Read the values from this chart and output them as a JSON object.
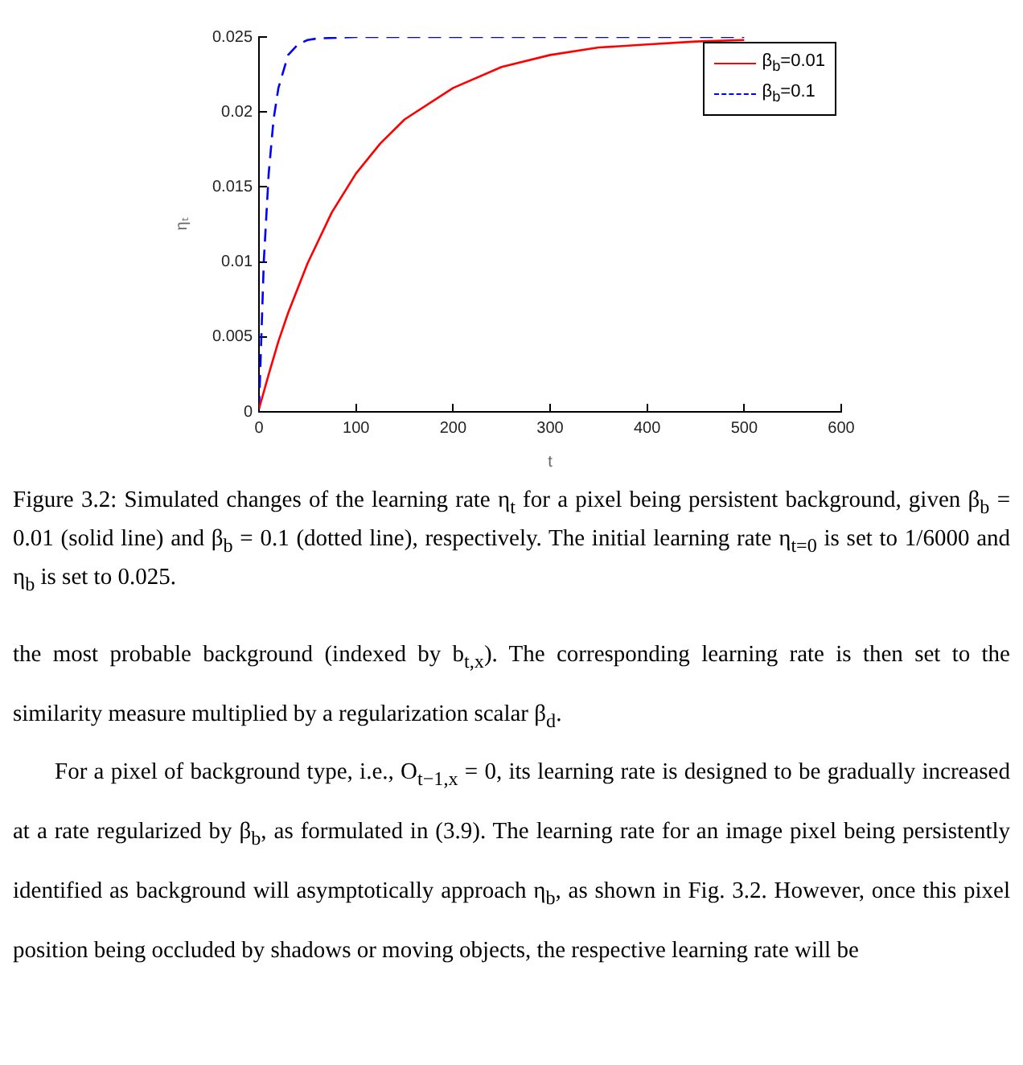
{
  "chart_data": {
    "type": "line",
    "xlabel": "t",
    "ylabel": "ηₜ",
    "xlim": [
      0,
      600
    ],
    "xticks": [
      0,
      100,
      200,
      300,
      400,
      500,
      600
    ],
    "ylim": [
      0,
      0.025
    ],
    "yticks": [
      0,
      0.005,
      0.01,
      0.015,
      0.02,
      0.025
    ],
    "grid": false,
    "legend": "top right",
    "series": [
      {
        "name": "β$_{b}$=0.01",
        "color": "#ff0000",
        "line_style": "solid",
        "x": [
          0,
          10,
          20,
          30,
          50,
          75,
          100,
          125,
          150,
          200,
          250,
          300,
          350,
          400,
          450,
          500
        ],
        "values": [
          0.0002,
          0.0025,
          0.0047,
          0.0066,
          0.0099,
          0.0133,
          0.0159,
          0.0179,
          0.0195,
          0.0216,
          0.023,
          0.0238,
          0.0243,
          0.0245,
          0.0247,
          0.0248
        ]
      },
      {
        "name": "β$_{b}$=0.1",
        "color": "#0000ff",
        "line_style": "dashed",
        "x": [
          0,
          5,
          10,
          15,
          20,
          30,
          40,
          50,
          60,
          100,
          200,
          300,
          400,
          500
        ],
        "values": [
          0.0002,
          0.0101,
          0.0159,
          0.0195,
          0.0216,
          0.0238,
          0.0245,
          0.0248,
          0.0249,
          0.025,
          0.025,
          0.025,
          0.025,
          0.025
        ]
      }
    ],
    "annotations": [
      "Figure 3.2: Simulated changes of the learning rate η$_{t}$ for a pixel being persistent background, given β$_{b}$ = 0.01 (solid line) and β$_{b}$ = 0.1 (dotted line), respectively. The initial learning rate η$_{t=0}$ is set to 1/6000 and η$_{b}$ is set to 0.025.",
      "the most probable background (indexed by b$_{t,x}$). The corresponding learning rate is then set to the similarity measure multiplied by a regularization scalar β$_{d}$.",
      "For a pixel of background type, i.e., O$_{t−1,x}$ = 0, its learning rate is designed to be gradually increased at a rate regularized by β$_{b}$, as formulated in (3.9). The learning rate for an image pixel being persistently identified as background will asymptotically approach η$_{b}$, as shown in Fig. 3.2. However, once this pixel position being occluded by shadows or moving objects, the respective learning rate will be"
    ]
  }
}
